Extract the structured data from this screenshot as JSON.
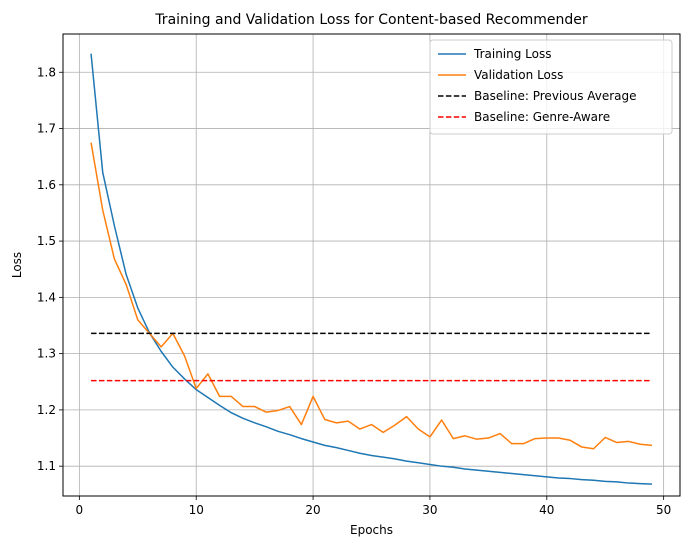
{
  "chart_data": {
    "type": "line",
    "title": "Training and Validation Loss for Content-based Recommender",
    "xlabel": "Epochs",
    "ylabel": "Loss",
    "xlim": [
      -1.4,
      51.4
    ],
    "ylim": [
      1.047,
      1.868
    ],
    "xticks": [
      0,
      10,
      20,
      30,
      40,
      50
    ],
    "yticks": [
      1.1,
      1.2,
      1.3,
      1.4,
      1.5,
      1.6,
      1.7,
      1.8
    ],
    "grid": true,
    "legend_position": "top-right",
    "x": [
      1,
      2,
      3,
      4,
      5,
      6,
      7,
      8,
      9,
      10,
      11,
      12,
      13,
      14,
      15,
      16,
      17,
      18,
      19,
      20,
      21,
      22,
      23,
      24,
      25,
      26,
      27,
      28,
      29,
      30,
      31,
      32,
      33,
      34,
      35,
      36,
      37,
      38,
      39,
      40,
      41,
      42,
      43,
      44,
      45,
      46,
      47,
      48,
      49
    ],
    "series": [
      {
        "name": "Training Loss",
        "color": "#1f77b4",
        "style": "solid",
        "values": [
          1.833,
          1.622,
          1.527,
          1.441,
          1.381,
          1.337,
          1.304,
          1.276,
          1.255,
          1.236,
          1.222,
          1.208,
          1.195,
          1.185,
          1.177,
          1.17,
          1.162,
          1.156,
          1.149,
          1.143,
          1.137,
          1.133,
          1.128,
          1.123,
          1.119,
          1.116,
          1.113,
          1.109,
          1.106,
          1.103,
          1.1,
          1.098,
          1.095,
          1.093,
          1.091,
          1.089,
          1.087,
          1.085,
          1.083,
          1.081,
          1.079,
          1.078,
          1.076,
          1.075,
          1.073,
          1.072,
          1.07,
          1.069,
          1.068
        ]
      },
      {
        "name": "Validation Loss",
        "color": "#ff7f0e",
        "style": "solid",
        "values": [
          1.675,
          1.555,
          1.468,
          1.423,
          1.36,
          1.336,
          1.312,
          1.336,
          1.296,
          1.238,
          1.264,
          1.224,
          1.224,
          1.206,
          1.206,
          1.196,
          1.199,
          1.206,
          1.174,
          1.224,
          1.183,
          1.177,
          1.18,
          1.166,
          1.174,
          1.16,
          1.173,
          1.188,
          1.166,
          1.152,
          1.182,
          1.149,
          1.154,
          1.148,
          1.15,
          1.158,
          1.14,
          1.14,
          1.149,
          1.15,
          1.15,
          1.146,
          1.134,
          1.131,
          1.151,
          1.142,
          1.144,
          1.139,
          1.137
        ]
      },
      {
        "name": "Baseline: Previous Average",
        "color": "#000000",
        "style": "dashed",
        "values": [
          1.336,
          1.336,
          1.336,
          1.336,
          1.336,
          1.336,
          1.336,
          1.336,
          1.336,
          1.336,
          1.336,
          1.336,
          1.336,
          1.336,
          1.336,
          1.336,
          1.336,
          1.336,
          1.336,
          1.336,
          1.336,
          1.336,
          1.336,
          1.336,
          1.336,
          1.336,
          1.336,
          1.336,
          1.336,
          1.336,
          1.336,
          1.336,
          1.336,
          1.336,
          1.336,
          1.336,
          1.336,
          1.336,
          1.336,
          1.336,
          1.336,
          1.336,
          1.336,
          1.336,
          1.336,
          1.336,
          1.336,
          1.336,
          1.336
        ]
      },
      {
        "name": "Baseline: Genre-Aware",
        "color": "#ff0000",
        "style": "dashed",
        "values": [
          1.252,
          1.252,
          1.252,
          1.252,
          1.252,
          1.252,
          1.252,
          1.252,
          1.252,
          1.252,
          1.252,
          1.252,
          1.252,
          1.252,
          1.252,
          1.252,
          1.252,
          1.252,
          1.252,
          1.252,
          1.252,
          1.252,
          1.252,
          1.252,
          1.252,
          1.252,
          1.252,
          1.252,
          1.252,
          1.252,
          1.252,
          1.252,
          1.252,
          1.252,
          1.252,
          1.252,
          1.252,
          1.252,
          1.252,
          1.252,
          1.252,
          1.252,
          1.252,
          1.252,
          1.252,
          1.252,
          1.252,
          1.252,
          1.252
        ]
      }
    ]
  }
}
